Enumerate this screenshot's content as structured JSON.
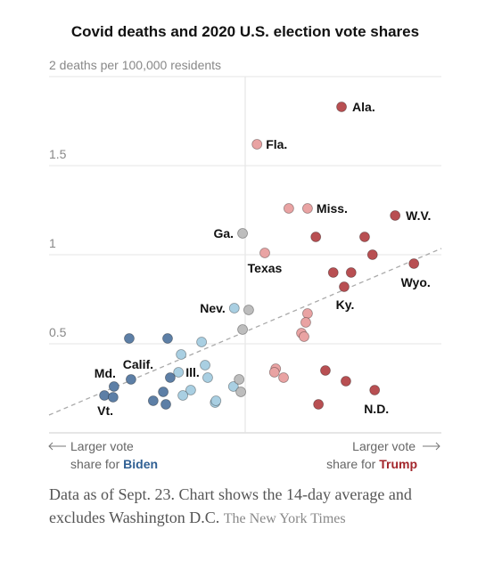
{
  "chart_data": {
    "type": "scatter",
    "title": "Covid deaths and 2020 U.S. election vote shares",
    "xlim": [
      -45,
      45
    ],
    "ylim": [
      0,
      2
    ],
    "yticks": [
      0.5,
      1,
      1.5,
      {
        "value": 2,
        "label": "2 deaths per 100,000 residents"
      }
    ],
    "grid": true,
    "series": [
      {
        "color": "#5d7fa6",
        "x": [
          -26.6,
          -17.8,
          -26.2,
          -30.1,
          -32.3,
          -30.3,
          -21.1,
          -18.8,
          -18.2,
          -17.2
        ],
        "values": [
          0.53,
          0.53,
          0.3,
          0.26,
          0.21,
          0.2,
          0.18,
          0.23,
          0.16,
          0.31
        ],
        "labels": [
          null,
          null,
          "Calif.",
          "Md.",
          "Vt.",
          null,
          null,
          null,
          null,
          null
        ]
      },
      {
        "color": "#a9cfe2",
        "x": [
          -14.7,
          -10.0,
          -15.3,
          -9.2,
          -8.6,
          -12.5,
          -14.3,
          -6.9,
          -6.7,
          -2.7,
          -2.5
        ],
        "values": [
          0.44,
          0.51,
          0.34,
          0.38,
          0.31,
          0.24,
          0.21,
          0.17,
          0.18,
          0.26,
          0.7
        ],
        "labels": [
          null,
          null,
          "Ill.",
          null,
          null,
          null,
          null,
          null,
          null,
          null,
          "Nev."
        ]
      },
      {
        "color": "#bdbdbd",
        "x": [
          -0.6,
          0.8,
          -0.6,
          -1.4,
          -1.0
        ],
        "values": [
          1.12,
          0.69,
          0.58,
          0.3,
          0.23
        ],
        "labels": [
          "Ga.",
          null,
          null,
          null,
          null
        ]
      },
      {
        "color": "#e9a3a3",
        "x": [
          2.7,
          10.0,
          14.3,
          4.5,
          14.3,
          13.9,
          12.9,
          13.5,
          7.0,
          6.7,
          8.8
        ],
        "values": [
          1.62,
          1.26,
          1.26,
          1.01,
          0.67,
          0.62,
          0.56,
          0.54,
          0.36,
          0.34,
          0.31
        ],
        "labels": [
          "Fla.",
          null,
          "Miss.",
          "Texas",
          null,
          null,
          null,
          null,
          null,
          null,
          null
        ]
      },
      {
        "color": "#b84f52",
        "x": [
          22.1,
          34.4,
          16.2,
          27.4,
          29.2,
          20.2,
          24.3,
          38.7,
          22.7,
          18.4,
          23.1,
          29.7,
          16.8
        ],
        "values": [
          1.83,
          1.22,
          1.1,
          1.1,
          1.0,
          0.9,
          0.9,
          0.95,
          0.82,
          0.35,
          0.29,
          0.24,
          0.16
        ],
        "labels": [
          "Ala.",
          "W.V.",
          null,
          null,
          null,
          null,
          null,
          "Wyo.",
          "Ky.",
          null,
          null,
          "N.D.",
          null
        ]
      }
    ],
    "trend_line": {
      "x": [
        -45,
        45
      ],
      "values": [
        0.1,
        1.035
      ]
    },
    "left_note": {
      "line1": "Larger vote",
      "line2": "share for",
      "party": "Biden",
      "color": "#2f5f93"
    },
    "right_note": {
      "line1": "Larger vote",
      "line2": "share for",
      "party": "Trump",
      "color": "#a3262b"
    }
  },
  "footnote": {
    "text": "Data as of Sept. 23. Chart shows the 14-day average and excludes Washington D.C.",
    "source": "The New York Times"
  }
}
